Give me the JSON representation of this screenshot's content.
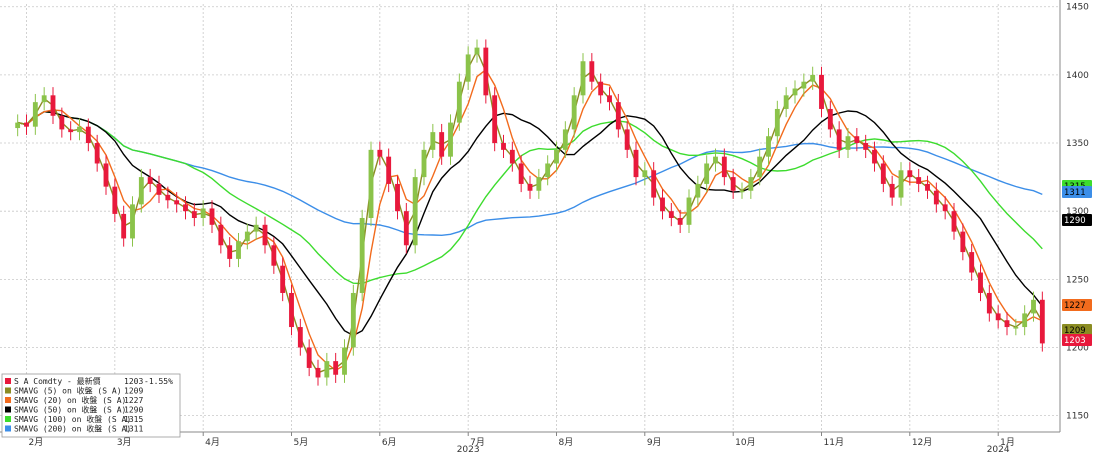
{
  "chart_data": {
    "type": "line",
    "ylim": [
      1138,
      1452
    ],
    "y_ticks": [
      1150,
      1200,
      1250,
      1300,
      1350,
      1400,
      1450
    ],
    "month_ticks": [
      {
        "label": "2月",
        "x": 1
      },
      {
        "label": "3月",
        "x": 11
      },
      {
        "label": "4月",
        "x": 21
      },
      {
        "label": "5月",
        "x": 31
      },
      {
        "label": "6月",
        "x": 41
      },
      {
        "label": "7月",
        "x": 51
      },
      {
        "label": "8月",
        "x": 61
      },
      {
        "label": "9月",
        "x": 71
      },
      {
        "label": "10月",
        "x": 81
      },
      {
        "label": "11月",
        "x": 91
      },
      {
        "label": "12月",
        "x": 101
      },
      {
        "label": "1月",
        "x": 111
      }
    ],
    "year_labels": [
      {
        "label": "2023",
        "x": 51
      },
      {
        "label": "2024",
        "x": 111
      }
    ],
    "x_range": [
      -2,
      118
    ],
    "grid": true,
    "legend_placement": "bottom-left",
    "candle_up_color": "#8bc34a",
    "candle_down_color": "#e8193c",
    "legend": [
      {
        "label": "S A Comdty - 最新價",
        "value": "1203",
        "change": "-1.55%",
        "color": "#e8193c"
      },
      {
        "label": "SMAVG (5) on 收盤 (S A)",
        "value": "1209",
        "change": "",
        "color": "#8b8c22"
      },
      {
        "label": "SMAVG (20) on 收盤 (S A)",
        "value": "1227",
        "change": "",
        "color": "#f26b1d"
      },
      {
        "label": "SMAVG (50) on 收盤 (S A)",
        "value": "1290",
        "change": "",
        "color": "#000000"
      },
      {
        "label": "SMAVG (100) on 收盤 (S A)",
        "value": "1315",
        "change": "",
        "color": "#3ddc2e"
      },
      {
        "label": "SMAVG (200) on 收盤 (S A)",
        "value": "1311",
        "change": "",
        "color": "#3c8ee8"
      }
    ],
    "last_value_tags": [
      {
        "value": "1315",
        "bg": "#3ddc2e",
        "fg": "#000000"
      },
      {
        "value": "1311",
        "bg": "#3c8ee8",
        "fg": "#000000"
      },
      {
        "value": "1290",
        "bg": "#000000",
        "fg": "#ffffff"
      },
      {
        "value": "1227",
        "bg": "#f26b1d",
        "fg": "#000000"
      },
      {
        "value": "1209",
        "bg": "#8b8c22",
        "fg": "#000000"
      },
      {
        "value": "1203",
        "bg": "#e8193c",
        "fg": "#ffffff"
      }
    ],
    "series": [
      {
        "name": "S A Comdty",
        "color": "#e8193c",
        "style": "candles",
        "x": [
          0,
          1,
          2,
          3,
          4,
          5,
          6,
          7,
          8,
          9,
          10,
          11,
          12,
          13,
          14,
          15,
          16,
          17,
          18,
          19,
          20,
          21,
          22,
          23,
          24,
          25,
          26,
          27,
          28,
          29,
          30,
          31,
          32,
          33,
          34,
          35,
          36,
          37,
          38,
          39,
          40,
          41,
          42,
          43,
          44,
          45,
          46,
          47,
          48,
          49,
          50,
          51,
          52,
          53,
          54,
          55,
          56,
          57,
          58,
          59,
          60,
          61,
          62,
          63,
          64,
          65,
          66,
          67,
          68,
          69,
          70,
          71,
          72,
          73,
          74,
          75,
          76,
          77,
          78,
          79,
          80,
          81,
          82,
          83,
          84,
          85,
          86,
          87,
          88,
          89,
          90,
          91,
          92,
          93,
          94,
          95,
          96,
          97,
          98,
          99,
          100,
          101,
          102,
          103,
          104,
          105,
          106,
          107,
          108,
          109,
          110,
          111,
          112,
          113,
          114,
          115,
          116
        ],
        "values": [
          1365,
          1362,
          1380,
          1385,
          1370,
          1360,
          1358,
          1362,
          1350,
          1335,
          1318,
          1298,
          1280,
          1305,
          1325,
          1320,
          1312,
          1308,
          1305,
          1300,
          1295,
          1302,
          1290,
          1275,
          1265,
          1278,
          1285,
          1290,
          1275,
          1260,
          1240,
          1215,
          1200,
          1185,
          1178,
          1190,
          1180,
          1200,
          1240,
          1295,
          1345,
          1340,
          1320,
          1300,
          1275,
          1325,
          1345,
          1358,
          1340,
          1365,
          1395,
          1415,
          1420,
          1385,
          1350,
          1345,
          1335,
          1320,
          1315,
          1325,
          1335,
          1345,
          1360,
          1385,
          1410,
          1395,
          1385,
          1380,
          1360,
          1345,
          1325,
          1330,
          1310,
          1300,
          1295,
          1290,
          1310,
          1320,
          1335,
          1340,
          1325,
          1315,
          1315,
          1325,
          1340,
          1355,
          1375,
          1385,
          1390,
          1395,
          1400,
          1375,
          1360,
          1345,
          1355,
          1350,
          1345,
          1335,
          1320,
          1310,
          1330,
          1325,
          1320,
          1315,
          1305,
          1300,
          1285,
          1270,
          1255,
          1240,
          1225,
          1220,
          1215,
          1215,
          1225,
          1235,
          1203
        ]
      }
    ]
  }
}
